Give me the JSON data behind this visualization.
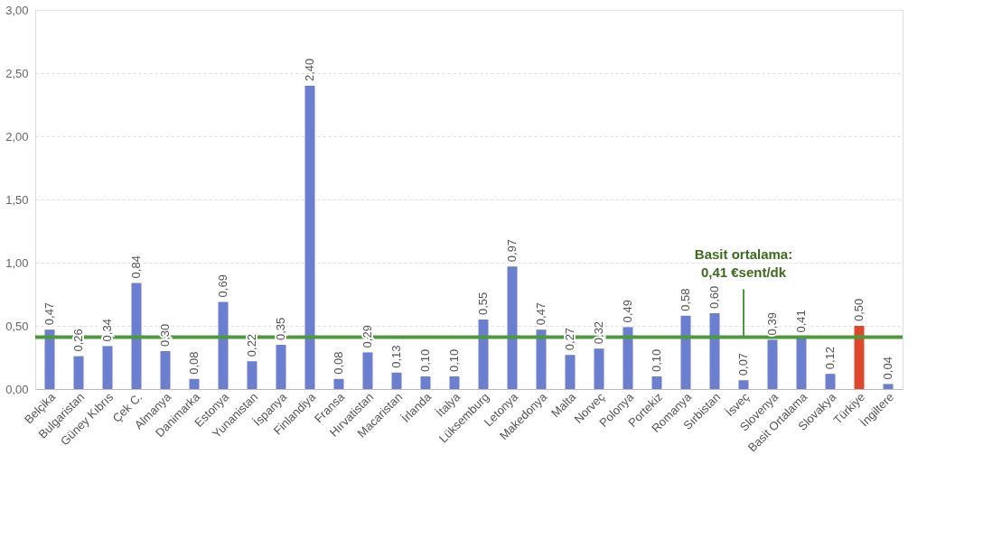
{
  "chart_data": {
    "type": "bar",
    "categories": [
      "Belçika",
      "Bulgaristan",
      "Güney Kıbrıs",
      "Çek C.",
      "Almanya",
      "Danimarka",
      "Estonya",
      "Yunanistan",
      "İspanya",
      "Finlandiya",
      "Fransa",
      "Hırvatistan",
      "Macaristan",
      "İrlanda",
      "İtalya",
      "Lüksemburg",
      "Letonya",
      "Makedonya",
      "Malta",
      "Norveç",
      "Polonya",
      "Portekiz",
      "Romanya",
      "Sırbistan",
      "İsveç",
      "Slovenya",
      "Basit Ortalama",
      "Slovakya",
      "Türkiye",
      "İngiltere"
    ],
    "values": [
      0.47,
      0.26,
      0.34,
      0.84,
      0.3,
      0.08,
      0.69,
      0.22,
      0.35,
      2.4,
      0.08,
      0.29,
      0.13,
      0.1,
      0.1,
      0.55,
      0.97,
      0.47,
      0.27,
      0.32,
      0.49,
      0.1,
      0.58,
      0.6,
      0.07,
      0.39,
      0.41,
      0.12,
      0.5,
      0.04
    ],
    "value_labels": [
      "0,47",
      "0,26",
      "0,34",
      "0,84",
      "0,30",
      "0,08",
      "0,69",
      "0,22",
      "0,35",
      "2,40",
      "0,08",
      "0,29",
      "0,13",
      "0,10",
      "0,10",
      "0,55",
      "0,97",
      "0,47",
      "0,27",
      "0,32",
      "0,49",
      "0,10",
      "0,58",
      "0,60",
      "0,07",
      "0,39",
      "0,41",
      "0,12",
      "0,50",
      "0,04"
    ],
    "colors": [
      "#6b7fd0",
      "#6b7fd0",
      "#6b7fd0",
      "#6b7fd0",
      "#6b7fd0",
      "#6b7fd0",
      "#6b7fd0",
      "#6b7fd0",
      "#6b7fd0",
      "#6b7fd0",
      "#6b7fd0",
      "#6b7fd0",
      "#6b7fd0",
      "#6b7fd0",
      "#6b7fd0",
      "#6b7fd0",
      "#6b7fd0",
      "#6b7fd0",
      "#6b7fd0",
      "#6b7fd0",
      "#6b7fd0",
      "#6b7fd0",
      "#6b7fd0",
      "#6b7fd0",
      "#6b7fd0",
      "#6b7fd0",
      "#6b7fd0",
      "#6b7fd0",
      "#e0472a",
      "#6b7fd0"
    ],
    "ylim": [
      0,
      3
    ],
    "yticks": [
      {
        "value": 0,
        "label": "0,00"
      },
      {
        "value": 0.5,
        "label": "0,50"
      },
      {
        "value": 1,
        "label": "1,00"
      },
      {
        "value": 1.5,
        "label": "1,50"
      },
      {
        "value": 2,
        "label": "2,00"
      },
      {
        "value": 2.5,
        "label": "2,50"
      },
      {
        "value": 3,
        "label": "3,00"
      }
    ],
    "grid": "y",
    "ref_lines": [
      {
        "axis": "y",
        "value": 0.41,
        "label": "Basit ortalama:\n0,41 €sent/dk",
        "color": "#4e9a3a",
        "line_style": "solid"
      }
    ]
  }
}
